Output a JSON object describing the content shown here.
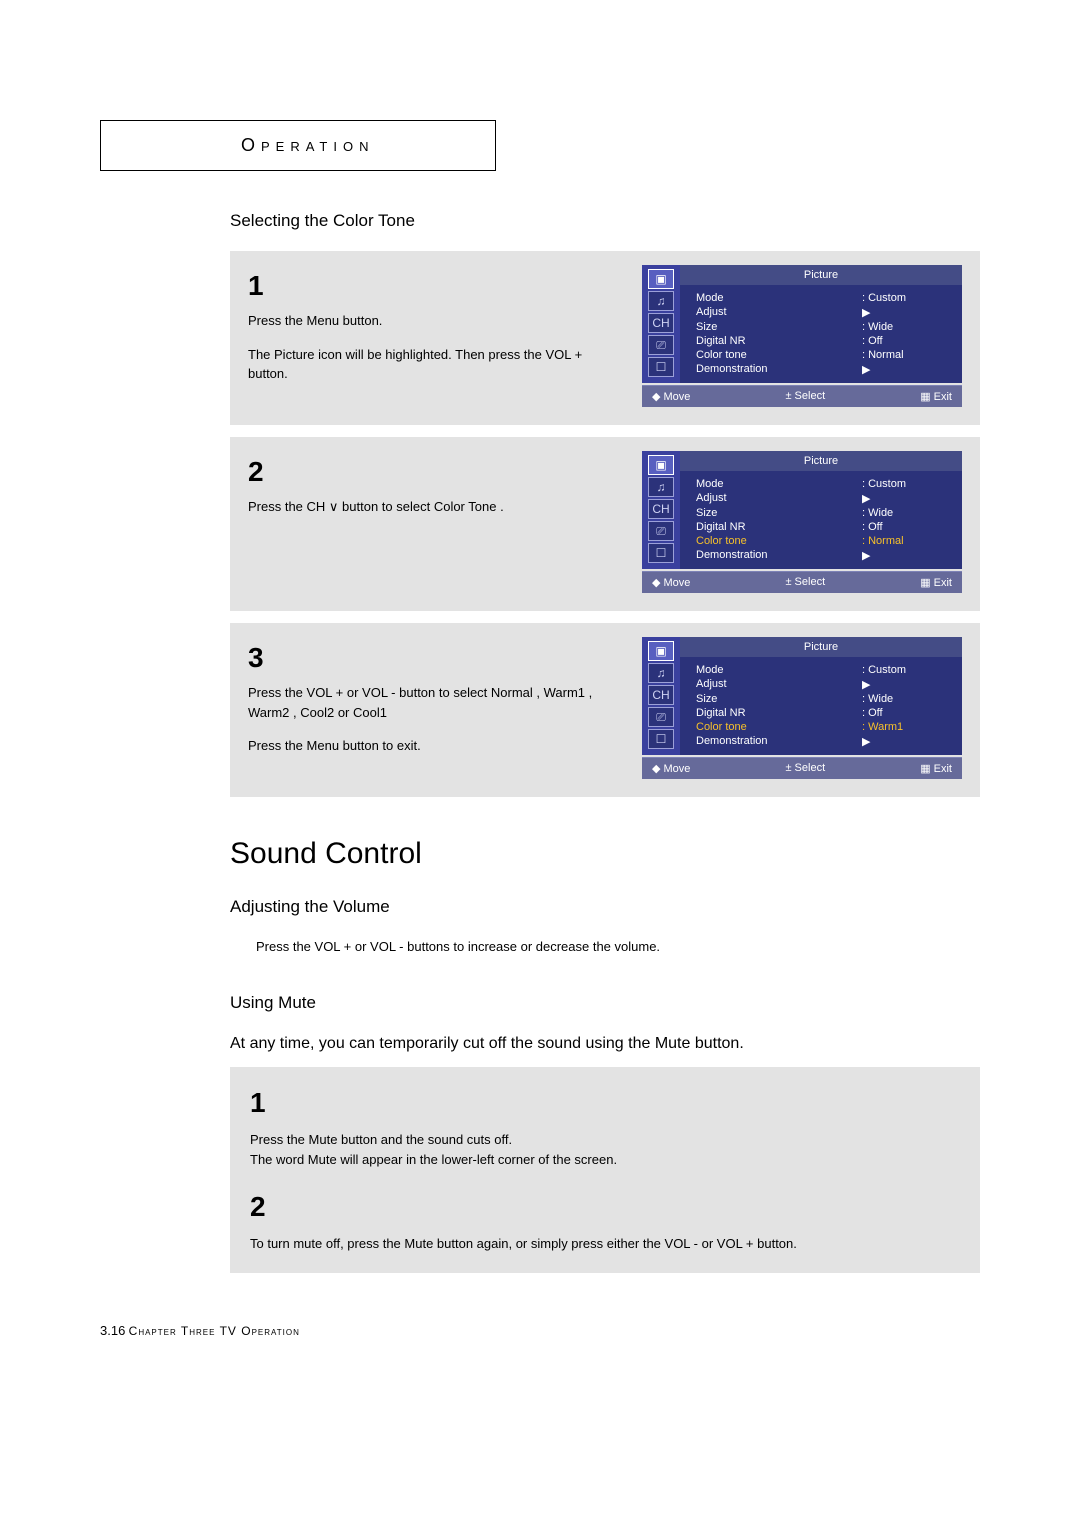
{
  "header": {
    "title": "Operation"
  },
  "sec1": {
    "title": "Selecting the Color Tone",
    "steps": [
      {
        "n": "1",
        "text1": "Press the Menu button.",
        "text2": "The Picture icon will be highlighted. Then press the VOL + button."
      },
      {
        "n": "2",
        "text1": "Press the CH ∨ button to select Color Tone .",
        "text2": ""
      },
      {
        "n": "3",
        "text1": "Press the VOL + or VOL - button to select Normal , Warm1 , Warm2 , Cool2 or Cool1",
        "text2": "Press the Menu button to exit."
      }
    ]
  },
  "osd_title": "Picture",
  "osd_help": {
    "move": "◆ Move",
    "select": "± Select",
    "exit": "▦ Exit"
  },
  "menus": [
    {
      "highlight": -1,
      "rows": [
        {
          "k": "Mode",
          "v": ": Custom"
        },
        {
          "k": "Adjust",
          "v": "▶"
        },
        {
          "k": "Size",
          "v": ": Wide"
        },
        {
          "k": "Digital NR",
          "v": ": Off"
        },
        {
          "k": "Color tone",
          "v": ": Normal"
        },
        {
          "k": "Demonstration",
          "v": "▶"
        }
      ]
    },
    {
      "highlight": 4,
      "rows": [
        {
          "k": "Mode",
          "v": ": Custom"
        },
        {
          "k": "Adjust",
          "v": "▶"
        },
        {
          "k": "Size",
          "v": ": Wide"
        },
        {
          "k": "Digital NR",
          "v": ": Off"
        },
        {
          "k": "Color tone",
          "v": ": Normal"
        },
        {
          "k": "Demonstration",
          "v": "▶"
        }
      ]
    },
    {
      "highlight": 4,
      "rows": [
        {
          "k": "Mode",
          "v": ": Custom"
        },
        {
          "k": "Adjust",
          "v": "▶"
        },
        {
          "k": "Size",
          "v": ": Wide"
        },
        {
          "k": "Digital NR",
          "v": ": Off"
        },
        {
          "k": "Color tone",
          "v": ": Warm1"
        },
        {
          "k": "Demonstration",
          "v": "▶"
        }
      ]
    }
  ],
  "icons": [
    "▣",
    "♫",
    "CH",
    "⎚",
    "☐"
  ],
  "sound": {
    "title": "Sound Control",
    "vol_title": "Adjusting the Volume",
    "vol_text": "Press the VOL + or VOL - buttons to increase or decrease the volume.",
    "mute_title": "Using Mute",
    "mute_intro": "At any time, you can temporarily cut off the sound using the Mute button.",
    "m1n": "1",
    "m1a": "Press the Mute button and the sound cuts off.",
    "m1b": "The word Mute will appear in the lower-left corner of the screen.",
    "m2n": "2",
    "m2a": "To turn mute off, press the Mute button again, or simply press either the VOL - or VOL + button."
  },
  "footer": {
    "pg": "3.16",
    "chap": "Chapter Three TV Operation"
  }
}
